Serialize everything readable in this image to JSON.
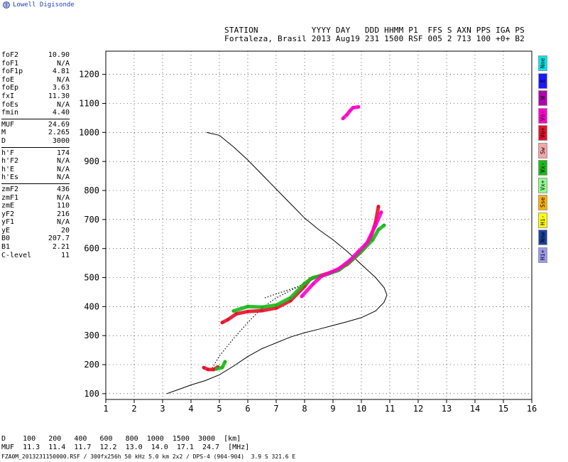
{
  "brand": "Lowell Digisonde",
  "header": {
    "line1": "STATION           YYYY DAY   DDD HHMM P1  FFS S AXN PPS IGA PS",
    "line2": "Fortaleza, Brasil 2013 Aug19 231 1500 RSF 005 2 713 100 +0+ B2"
  },
  "params": [
    [
      {
        "k": "foF2",
        "v": "10.90"
      },
      {
        "k": "foF1",
        "v": "N/A"
      },
      {
        "k": "foF1p",
        "v": "4.81"
      },
      {
        "k": "foE",
        "v": "N/A"
      },
      {
        "k": "foEp",
        "v": "3.63"
      },
      {
        "k": "fxI",
        "v": "11.30"
      },
      {
        "k": "foEs",
        "v": "N/A"
      },
      {
        "k": "fmin",
        "v": "4.40"
      }
    ],
    [
      {
        "k": "MUF",
        "v": "24.69"
      },
      {
        "k": "M",
        "v": "2.265"
      },
      {
        "k": "D",
        "v": "3000"
      }
    ],
    [
      {
        "k": "h'F",
        "v": "174"
      },
      {
        "k": "h'F2",
        "v": "N/A"
      },
      {
        "k": "h'E",
        "v": "N/A"
      },
      {
        "k": "h'Es",
        "v": "N/A"
      }
    ],
    [
      {
        "k": "zmF2",
        "v": "436"
      },
      {
        "k": "zmF1",
        "v": "N/A"
      },
      {
        "k": "zmE",
        "v": "110"
      },
      {
        "k": "yF2",
        "v": "216"
      },
      {
        "k": "yF1",
        "v": "N/A"
      },
      {
        "k": "yE",
        "v": "20"
      },
      {
        "k": "B0",
        "v": "207.7"
      },
      {
        "k": "B1",
        "v": "2.21"
      },
      {
        "k": "C-level",
        "v": "11"
      }
    ]
  ],
  "legend": [
    {
      "label": "Nne",
      "color": "#00e6e6"
    },
    {
      "label": "E",
      "color": "#1a1aff"
    },
    {
      "label": "W",
      "color": "#b000b0"
    },
    {
      "label": "Vo-",
      "color": "#ff00cc"
    },
    {
      "label": "Vo+",
      "color": "#e8102a"
    },
    {
      "label": "Sw",
      "color": "#f4a6a6"
    },
    {
      "label": "Vx-",
      "color": "#18b818"
    },
    {
      "label": "Vx+",
      "color": "#8cff8c"
    },
    {
      "label": "Sse",
      "color": "#ffb000"
    },
    {
      "label": "Hi-",
      "color": "#ffff00"
    },
    {
      "label": "Nnw",
      "color": "#1844a4"
    },
    {
      "label": "Hi+",
      "color": "#9a9aee"
    }
  ],
  "muf_table": {
    "d_line": "D    100   200   400   600   800  1000  1500  3000  [km]",
    "muf_line": "MUF  11.3  11.4  11.7  12.2  13.0  14.0  17.1  24.7  [MHz]"
  },
  "footer": "FZA0M_2013231150000.RSF / 300fx256h 50 kHz 5.0 km 2x2 / DPS-4 (904-904)  3.9 S 321.6 E",
  "chart_data": {
    "type": "scatter",
    "xlim": [
      1,
      16
    ],
    "ylim": [
      80,
      1280
    ],
    "x_ticks": [
      1,
      2,
      3,
      4,
      5,
      6,
      7,
      8,
      9,
      10,
      11,
      12,
      13,
      14,
      15,
      16
    ],
    "y_ticks": [
      100,
      200,
      300,
      400,
      500,
      600,
      700,
      800,
      900,
      1000,
      1100,
      1200
    ],
    "grid": true,
    "series": [
      {
        "role": "profile",
        "color": "#000000",
        "points": [
          [
            3.15,
            100
          ],
          [
            3.5,
            112
          ],
          [
            4.0,
            130
          ],
          [
            4.5,
            145
          ],
          [
            5.0,
            165
          ],
          [
            5.5,
            195
          ],
          [
            6.0,
            228
          ],
          [
            6.5,
            255
          ],
          [
            7.0,
            275
          ],
          [
            7.5,
            295
          ],
          [
            8.0,
            310
          ],
          [
            8.5,
            322
          ],
          [
            9.0,
            335
          ],
          [
            9.5,
            348
          ],
          [
            10.0,
            362
          ],
          [
            10.5,
            385
          ],
          [
            10.8,
            415
          ],
          [
            10.9,
            440
          ],
          [
            10.8,
            465
          ],
          [
            10.5,
            500
          ],
          [
            10.0,
            545
          ],
          [
            9.5,
            590
          ],
          [
            9.0,
            630
          ],
          [
            8.5,
            665
          ],
          [
            8.0,
            705
          ],
          [
            7.5,
            755
          ],
          [
            7.0,
            805
          ],
          [
            6.5,
            855
          ],
          [
            6.0,
            905
          ],
          [
            5.5,
            950
          ],
          [
            5.0,
            990
          ],
          [
            4.55,
            1000
          ]
        ]
      },
      {
        "role": "virtual-height-dotted",
        "color": "#000000",
        "points": [
          [
            4.7,
            180
          ],
          [
            5.0,
            230
          ],
          [
            5.5,
            290
          ],
          [
            6.0,
            345
          ],
          [
            6.5,
            395
          ],
          [
            7.0,
            430
          ],
          [
            7.5,
            455
          ],
          [
            8.0,
            480
          ],
          [
            8.3,
            495
          ]
        ]
      },
      {
        "role": "virtual-height-dotted-upper",
        "color": "#000000",
        "points": [
          [
            6.6,
            430
          ],
          [
            7.2,
            450
          ],
          [
            7.8,
            470
          ],
          [
            8.3,
            495
          ]
        ]
      },
      {
        "role": "echo-O-mode",
        "color": "#e8102a",
        "points": [
          [
            4.45,
            190
          ],
          [
            4.6,
            183
          ],
          [
            4.8,
            183
          ],
          [
            4.95,
            192
          ],
          [
            5.1,
            345
          ],
          [
            5.3,
            355
          ],
          [
            5.6,
            375
          ],
          [
            6.0,
            383
          ],
          [
            6.5,
            386
          ],
          [
            7.0,
            395
          ],
          [
            7.5,
            420
          ],
          [
            8.0,
            470
          ],
          [
            8.2,
            495
          ],
          [
            8.5,
            505
          ],
          [
            9.0,
            520
          ],
          [
            9.5,
            545
          ],
          [
            10.0,
            590
          ],
          [
            10.3,
            630
          ],
          [
            10.5,
            690
          ],
          [
            10.6,
            745
          ]
        ]
      },
      {
        "role": "echo-X-mode",
        "color": "#18b818",
        "points": [
          [
            4.9,
            185
          ],
          [
            5.1,
            190
          ],
          [
            5.2,
            210
          ],
          [
            5.5,
            385
          ],
          [
            6.0,
            400
          ],
          [
            6.5,
            398
          ],
          [
            7.0,
            405
          ],
          [
            7.5,
            430
          ],
          [
            8.0,
            480
          ],
          [
            8.3,
            500
          ],
          [
            8.7,
            508
          ],
          [
            9.2,
            525
          ],
          [
            9.6,
            555
          ],
          [
            10.0,
            590
          ],
          [
            10.4,
            630
          ],
          [
            10.6,
            665
          ],
          [
            10.8,
            680
          ]
        ]
      },
      {
        "role": "echo-oblique",
        "color": "#ff00cc",
        "points": [
          [
            7.9,
            435
          ],
          [
            8.3,
            478
          ],
          [
            8.6,
            505
          ],
          [
            9.2,
            530
          ],
          [
            9.6,
            560
          ],
          [
            9.9,
            590
          ],
          [
            10.2,
            620
          ],
          [
            10.5,
            680
          ],
          [
            10.7,
            725
          ],
          [
            9.35,
            1048
          ],
          [
            9.5,
            1062
          ],
          [
            9.6,
            1075
          ],
          [
            9.7,
            1085
          ],
          [
            9.9,
            1088
          ]
        ]
      }
    ]
  }
}
